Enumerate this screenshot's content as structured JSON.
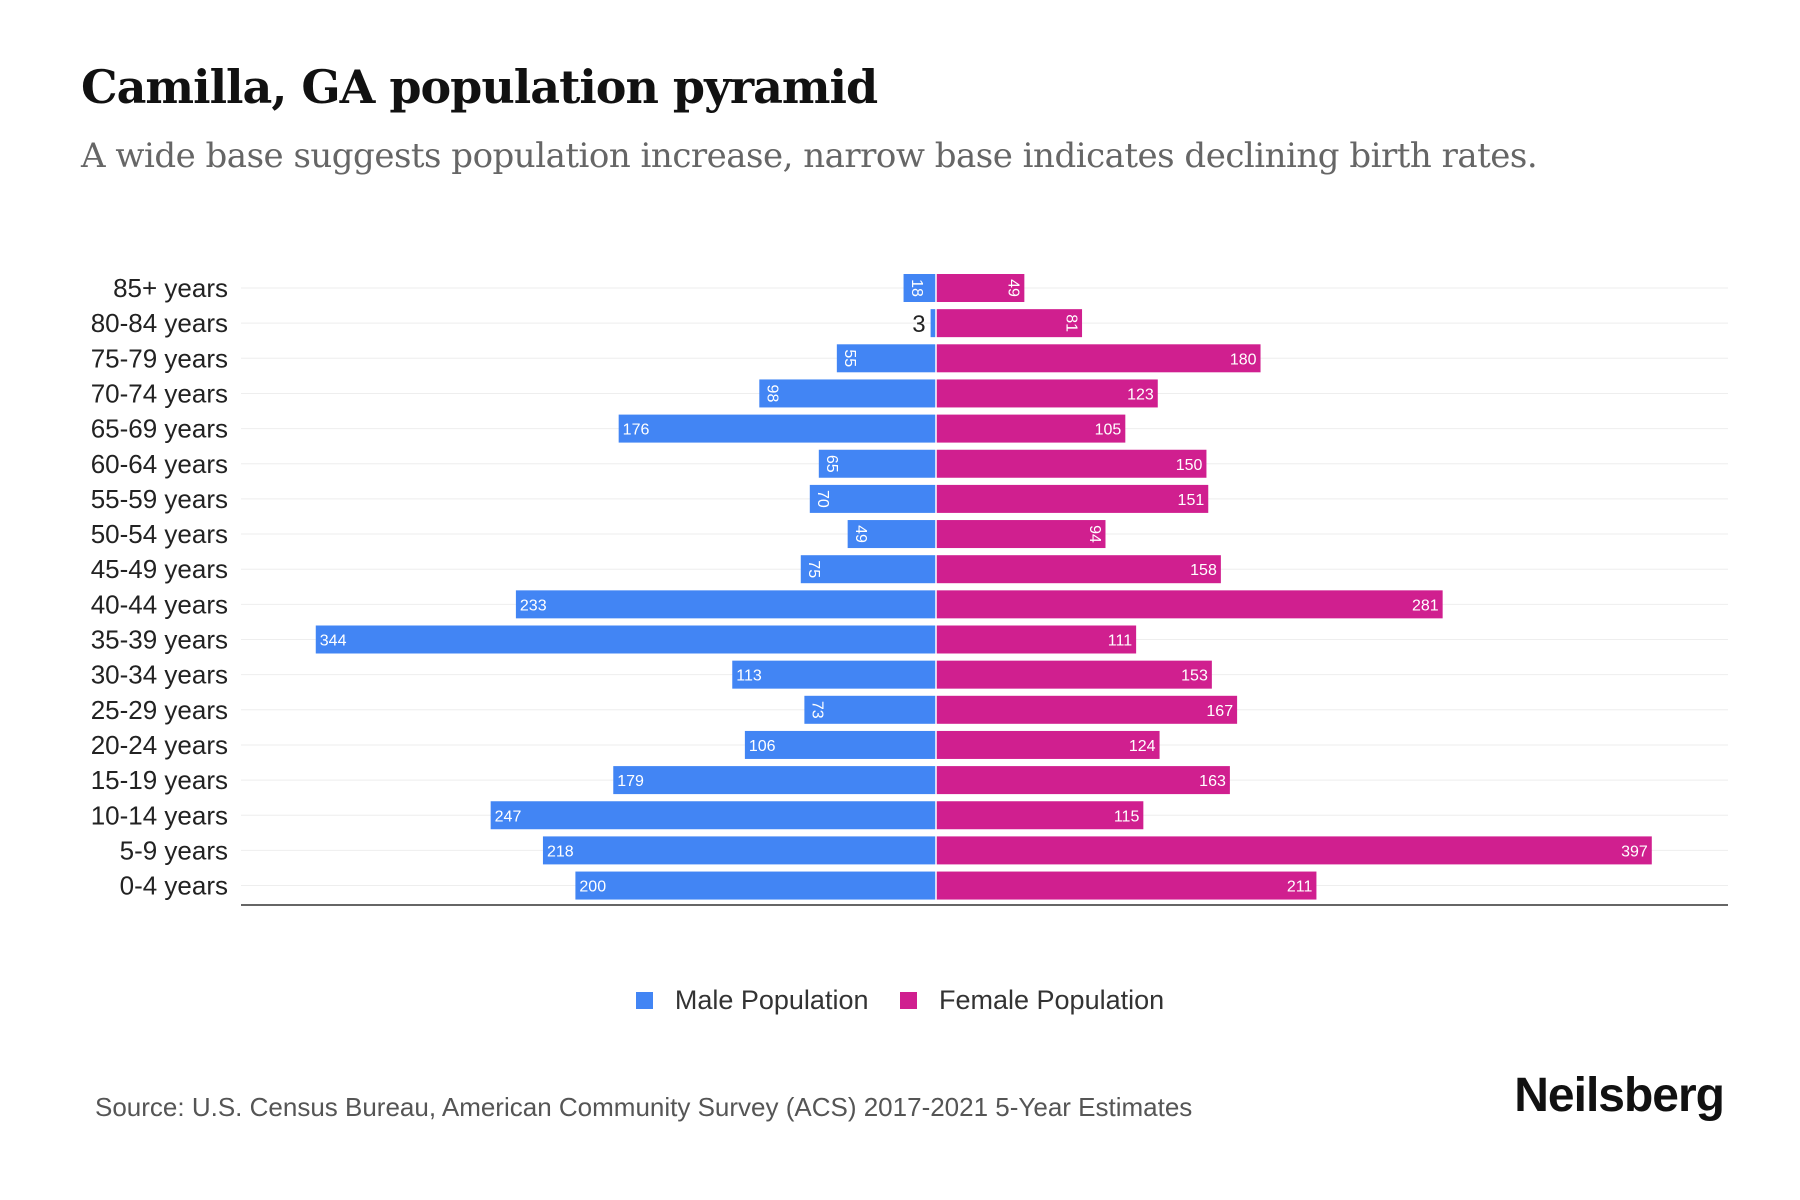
{
  "chart_data": {
    "type": "bar",
    "orientation": "horizontal-pyramid",
    "title": "Camilla, GA population pyramid",
    "subtitle": "A wide base suggests population increase, narrow base indicates declining birth rates.",
    "categories": [
      "85+ years",
      "80-84 years",
      "75-79 years",
      "70-74 years",
      "65-69 years",
      "60-64 years",
      "55-59 years",
      "50-54 years",
      "45-49 years",
      "40-44 years",
      "35-39 years",
      "30-34 years",
      "25-29 years",
      "20-24 years",
      "15-19 years",
      "10-14 years",
      "5-9 years",
      "0-4 years"
    ],
    "series": [
      {
        "name": "Male Population",
        "color": "#4285f4",
        "values": [
          18,
          3,
          55,
          98,
          176,
          65,
          70,
          49,
          75,
          233,
          344,
          113,
          73,
          106,
          179,
          247,
          218,
          200
        ]
      },
      {
        "name": "Female Population",
        "color": "#d01f8f",
        "values": [
          49,
          81,
          180,
          123,
          105,
          150,
          151,
          94,
          158,
          281,
          111,
          153,
          167,
          124,
          163,
          115,
          397,
          211
        ]
      }
    ],
    "legend_position": "bottom-center",
    "grid": true
  },
  "source": "Source: U.S. Census Bureau, American Community Survey (ACS) 2017-2021 5-Year Estimates",
  "brand": "Neilsberg"
}
